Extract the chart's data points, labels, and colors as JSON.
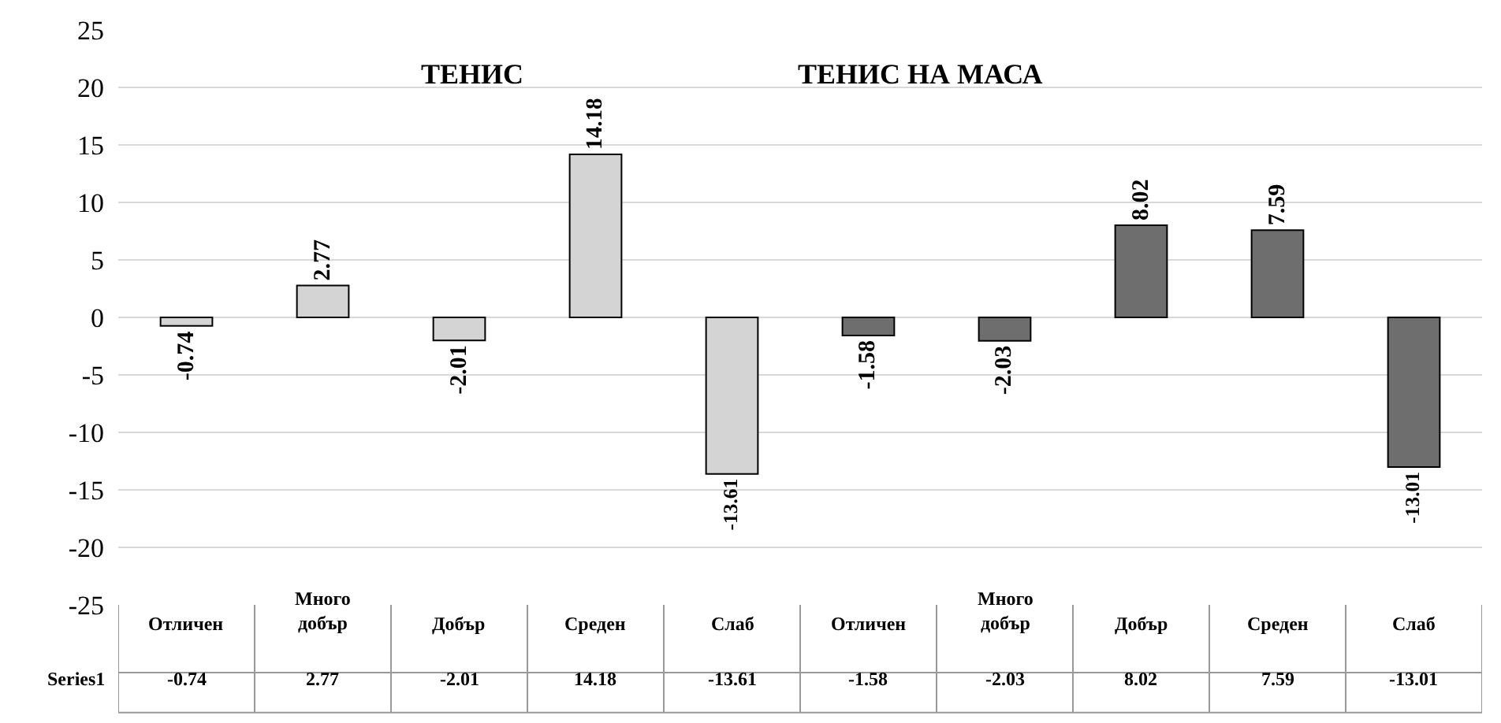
{
  "chart_data": {
    "type": "bar",
    "categories": [
      "Отличен",
      "Много добър",
      "Добър",
      "Среден",
      "Слаб",
      "Отличен",
      "Много добър",
      "Добър",
      "Среден",
      "Слаб"
    ],
    "series": [
      {
        "name": "Series1",
        "colors": [
          "#d4d4d4",
          "#d4d4d4",
          "#d4d4d4",
          "#d4d4d4",
          "#d4d4d4",
          "#6e6e6e",
          "#6e6e6e",
          "#6e6e6e",
          "#6e6e6e",
          "#6e6e6e"
        ],
        "values": [
          -0.74,
          2.77,
          -2.01,
          14.18,
          -13.61,
          -1.58,
          -2.03,
          8.02,
          7.59,
          -13.01
        ],
        "value_labels": [
          "-0.74",
          "2.77",
          "-2.01",
          "14.18",
          "-13.61",
          "-1.58",
          "-2.03",
          "8.02",
          "7.59",
          "-13.01"
        ]
      }
    ],
    "annotations": [
      "ТЕНИС",
      "ТЕНИС НА МАСА"
    ],
    "ylim": [
      -25,
      25
    ],
    "yticks": [
      -25,
      -20,
      -15,
      -10,
      -5,
      0,
      5,
      10,
      15,
      20,
      25
    ],
    "grid": "y",
    "data_labels": true
  }
}
